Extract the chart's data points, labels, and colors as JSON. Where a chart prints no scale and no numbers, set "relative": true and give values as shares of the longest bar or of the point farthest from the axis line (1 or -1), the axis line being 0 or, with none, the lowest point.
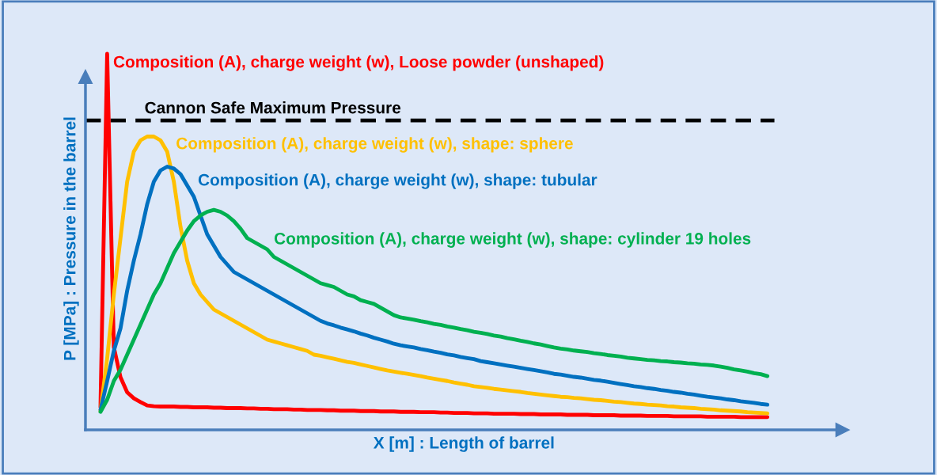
{
  "chart_data": {
    "type": "line",
    "relative": true,
    "xlabel": "X [m] : Length of barrel",
    "ylabel": "P [MPa] : Pressure in the barrel",
    "categories": [
      null,
      null,
      null,
      null,
      null,
      null,
      null,
      null,
      null,
      null,
      null,
      null,
      null,
      null,
      null,
      null,
      null,
      null,
      null,
      null,
      null,
      null,
      null,
      null,
      null,
      null,
      null,
      null,
      null,
      null,
      null,
      null,
      null,
      null,
      null,
      null,
      null,
      null,
      null,
      null,
      null,
      null,
      null,
      null,
      null,
      null,
      null,
      null,
      null,
      null,
      null,
      null,
      null,
      null,
      null,
      null,
      null,
      null,
      null,
      null,
      null,
      null,
      null,
      null,
      null,
      null,
      null,
      null,
      null,
      null,
      null,
      null,
      null,
      null,
      null,
      null,
      null,
      null,
      null,
      null,
      null,
      null,
      null,
      null,
      null,
      null,
      null,
      null,
      null,
      null,
      null,
      null,
      null,
      null,
      null,
      null,
      null,
      null,
      null,
      null,
      null
    ],
    "series": [
      {
        "name": "Composition (A), charge weight (w), Loose powder (unshaped)",
        "color": "#ff0000",
        "values": [
          0.06,
          1.0,
          0.22,
          0.14,
          0.1,
          0.084,
          0.074,
          0.065,
          0.063,
          0.062,
          0.062,
          0.062,
          0.061,
          0.061,
          0.06,
          0.06,
          0.06,
          0.059,
          0.059,
          0.058,
          0.058,
          0.058,
          0.057,
          0.057,
          0.056,
          0.056,
          0.055,
          0.055,
          0.055,
          0.054,
          0.054,
          0.053,
          0.053,
          0.053,
          0.052,
          0.052,
          0.051,
          0.051,
          0.051,
          0.05,
          0.05,
          0.05,
          0.049,
          0.049,
          0.049,
          0.048,
          0.048,
          0.048,
          0.047,
          0.047,
          0.047,
          0.046,
          0.046,
          0.045,
          0.045,
          0.045,
          0.044,
          0.044,
          0.044,
          0.043,
          0.043,
          0.043,
          0.043,
          0.042,
          0.042,
          0.042,
          0.041,
          0.041,
          0.041,
          0.041,
          0.04,
          0.04,
          0.04,
          0.04,
          0.039,
          0.039,
          0.039,
          0.039,
          0.038,
          0.038,
          0.038,
          0.038,
          0.037,
          0.037,
          0.037,
          0.037,
          0.036,
          0.036,
          0.036,
          0.036,
          0.036,
          0.035,
          0.035,
          0.035,
          0.035,
          0.035,
          0.034,
          0.034,
          0.034,
          0.034,
          0.034
        ]
      },
      {
        "name": "Composition (A), charge weight (w), shape: sphere",
        "color": "#ffc000",
        "values": [
          0.05,
          0.19,
          0.36,
          0.51,
          0.66,
          0.74,
          0.77,
          0.78,
          0.78,
          0.77,
          0.74,
          0.66,
          0.54,
          0.45,
          0.39,
          0.36,
          0.34,
          0.32,
          0.31,
          0.3,
          0.29,
          0.28,
          0.27,
          0.26,
          0.25,
          0.24,
          0.235,
          0.23,
          0.225,
          0.22,
          0.215,
          0.21,
          0.2,
          0.197,
          0.193,
          0.189,
          0.185,
          0.181,
          0.178,
          0.174,
          0.17,
          0.166,
          0.162,
          0.158,
          0.155,
          0.152,
          0.149,
          0.146,
          0.143,
          0.139,
          0.136,
          0.133,
          0.13,
          0.126,
          0.123,
          0.12,
          0.116,
          0.114,
          0.112,
          0.109,
          0.107,
          0.105,
          0.103,
          0.101,
          0.098,
          0.096,
          0.094,
          0.092,
          0.09,
          0.088,
          0.087,
          0.085,
          0.084,
          0.082,
          0.08,
          0.079,
          0.077,
          0.075,
          0.074,
          0.072,
          0.07,
          0.069,
          0.067,
          0.066,
          0.065,
          0.063,
          0.062,
          0.06,
          0.059,
          0.058,
          0.056,
          0.055,
          0.054,
          0.052,
          0.051,
          0.05,
          0.049,
          0.047,
          0.046,
          0.045,
          0.044
        ]
      },
      {
        "name": "Composition (A), charge weight (w), shape: tubular",
        "color": "#0070c0",
        "values": [
          0.053,
          0.13,
          0.21,
          0.27,
          0.37,
          0.45,
          0.52,
          0.6,
          0.66,
          0.69,
          0.7,
          0.695,
          0.68,
          0.65,
          0.62,
          0.57,
          0.52,
          0.49,
          0.46,
          0.44,
          0.42,
          0.41,
          0.4,
          0.39,
          0.38,
          0.37,
          0.36,
          0.35,
          0.34,
          0.33,
          0.32,
          0.31,
          0.3,
          0.29,
          0.283,
          0.278,
          0.272,
          0.267,
          0.262,
          0.256,
          0.251,
          0.245,
          0.24,
          0.235,
          0.229,
          0.225,
          0.222,
          0.219,
          0.215,
          0.212,
          0.208,
          0.205,
          0.201,
          0.198,
          0.194,
          0.191,
          0.188,
          0.183,
          0.18,
          0.177,
          0.174,
          0.171,
          0.168,
          0.165,
          0.162,
          0.159,
          0.156,
          0.153,
          0.149,
          0.147,
          0.144,
          0.141,
          0.139,
          0.136,
          0.133,
          0.131,
          0.128,
          0.125,
          0.122,
          0.119,
          0.116,
          0.114,
          0.111,
          0.109,
          0.106,
          0.104,
          0.101,
          0.099,
          0.096,
          0.094,
          0.091,
          0.088,
          0.086,
          0.084,
          0.081,
          0.079,
          0.076,
          0.074,
          0.072,
          0.069,
          0.067
        ]
      },
      {
        "name": "Composition (A), charge weight (w), shape: cylinder 19 holes",
        "color": "#00b050",
        "values": [
          0.048,
          0.08,
          0.13,
          0.16,
          0.2,
          0.24,
          0.28,
          0.32,
          0.36,
          0.39,
          0.43,
          0.47,
          0.5,
          0.53,
          0.555,
          0.57,
          0.58,
          0.585,
          0.58,
          0.57,
          0.555,
          0.535,
          0.51,
          0.5,
          0.49,
          0.48,
          0.46,
          0.45,
          0.44,
          0.43,
          0.42,
          0.41,
          0.4,
          0.39,
          0.385,
          0.38,
          0.37,
          0.36,
          0.355,
          0.345,
          0.34,
          0.335,
          0.325,
          0.315,
          0.305,
          0.299,
          0.296,
          0.293,
          0.289,
          0.286,
          0.282,
          0.279,
          0.275,
          0.272,
          0.268,
          0.265,
          0.261,
          0.258,
          0.255,
          0.251,
          0.248,
          0.244,
          0.241,
          0.237,
          0.234,
          0.23,
          0.227,
          0.223,
          0.219,
          0.216,
          0.214,
          0.211,
          0.209,
          0.207,
          0.204,
          0.202,
          0.199,
          0.197,
          0.195,
          0.192,
          0.19,
          0.188,
          0.186,
          0.185,
          0.183,
          0.182,
          0.18,
          0.179,
          0.177,
          0.176,
          0.174,
          0.173,
          0.171,
          0.168,
          0.165,
          0.161,
          0.158,
          0.155,
          0.151,
          0.148,
          0.143
        ]
      }
    ],
    "ref_lines": [
      {
        "axis": "y",
        "value": 0.823,
        "label": "Cannon Safe Maximum Pressure",
        "color": "#000000",
        "line_style": "dashed"
      }
    ]
  }
}
